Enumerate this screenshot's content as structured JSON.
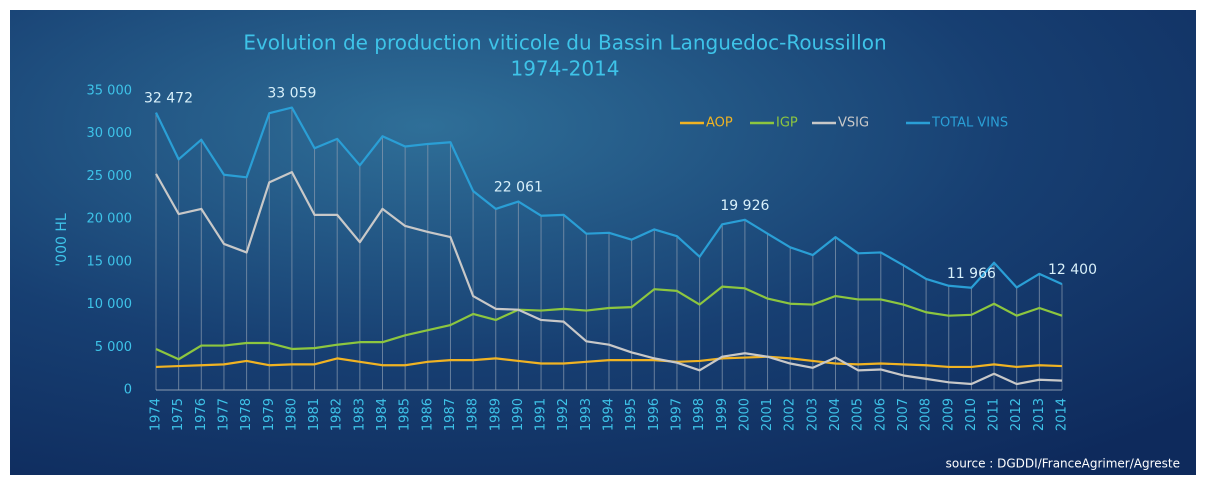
{
  "chart_data": {
    "type": "line",
    "title": "Evolution de production viticole du Bassin Languedoc-Roussillon",
    "subtitle": "1974-2014",
    "y_label": "'000 HL",
    "source": "source : DGDDI/FranceAgrimer/Agreste",
    "legend_position": "top-right",
    "categories": [
      "1974",
      "1975",
      "1976",
      "1977",
      "1978",
      "1979",
      "1980",
      "1981",
      "1982",
      "1983",
      "1984",
      "1985",
      "1986",
      "1987",
      "1988",
      "1989",
      "1990",
      "1991",
      "1992",
      "1993",
      "1994",
      "1995",
      "1996",
      "1997",
      "1998",
      "1999",
      "2000",
      "2001",
      "2002",
      "2003",
      "2004",
      "2005",
      "2006",
      "2007",
      "2008",
      "2009",
      "2010",
      "2011",
      "2012",
      "2013",
      "2014"
    ],
    "ylim": [
      0,
      35000
    ],
    "yticks": [
      0,
      {
        "value": 5000,
        "label": "5 000"
      },
      {
        "value": 10000,
        "label": "10 000"
      },
      {
        "value": 15000,
        "label": "15 000"
      },
      {
        "value": 20000,
        "label": "20 000"
      },
      {
        "value": 25000,
        "label": "25 000"
      },
      {
        "value": 30000,
        "label": "30 000"
      },
      {
        "value": 35000,
        "label": "35 000"
      }
    ],
    "drop_lines": true,
    "series": [
      {
        "name": "AOP",
        "color": "#f0b323",
        "values": [
          2700,
          2800,
          2900,
          3000,
          3400,
          2900,
          3000,
          3000,
          3700,
          3300,
          2900,
          2900,
          3300,
          3500,
          3500,
          3700,
          3400,
          3100,
          3100,
          3300,
          3500,
          3500,
          3500,
          3300,
          3400,
          3700,
          3800,
          3900,
          3700,
          3400,
          3100,
          3000,
          3100,
          3000,
          2900,
          2700,
          2700,
          3000,
          2700,
          2900,
          2800
        ]
      },
      {
        "name": "IGP",
        "color": "#8dc63f",
        "values": [
          4800,
          3600,
          5200,
          5200,
          5500,
          5500,
          4800,
          4900,
          5300,
          5600,
          5600,
          6400,
          7000,
          7600,
          8900,
          8200,
          9400,
          9300,
          9500,
          9300,
          9600,
          9700,
          11800,
          11600,
          10000,
          12100,
          11900,
          10700,
          10100,
          10000,
          11000,
          10600,
          10600,
          10000,
          9100,
          8700,
          8800,
          10100,
          8700,
          9600,
          8700
        ]
      },
      {
        "name": "VSIG",
        "color": "#c8c8c8",
        "values": [
          25300,
          20600,
          21200,
          17100,
          16100,
          24300,
          25500,
          20500,
          20500,
          17300,
          21200,
          19200,
          18500,
          17900,
          11000,
          9500,
          9400,
          8200,
          8000,
          5700,
          5300,
          4400,
          3700,
          3200,
          2300,
          3900,
          4300,
          3900,
          3100,
          2600,
          3800,
          2300,
          2400,
          1700,
          1300,
          900,
          700,
          1900,
          700,
          1200,
          1100
        ]
      },
      {
        "name": "TOTAL VINS",
        "color": "#2a9fd6",
        "values": [
          32472,
          27000,
          29300,
          25200,
          24900,
          32400,
          33059,
          28300,
          29400,
          26300,
          29700,
          28500,
          28800,
          29000,
          23300,
          21200,
          22061,
          20400,
          20500,
          18300,
          18400,
          17600,
          18800,
          18000,
          15600,
          19400,
          19926,
          18300,
          16700,
          15800,
          17900,
          16000,
          16100,
          14600,
          13000,
          12200,
          11966,
          14900,
          12000,
          13600,
          12400
        ],
        "value_labels": [
          "32 472",
          null,
          null,
          null,
          null,
          null,
          "33 059",
          null,
          null,
          null,
          null,
          null,
          null,
          null,
          null,
          null,
          "22 061",
          null,
          null,
          null,
          null,
          null,
          null,
          null,
          null,
          null,
          "19 926",
          null,
          null,
          null,
          null,
          null,
          null,
          null,
          null,
          null,
          "11 966",
          null,
          null,
          null,
          "12 400"
        ]
      }
    ]
  }
}
